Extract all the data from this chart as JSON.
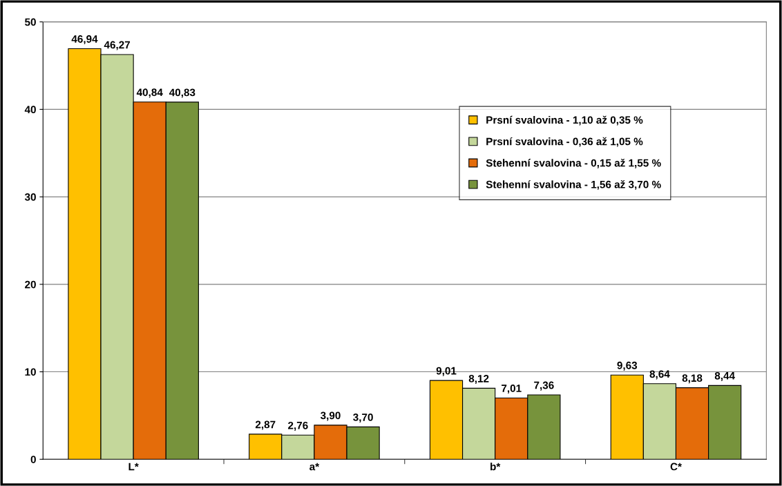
{
  "chart_data": {
    "type": "bar",
    "categories": [
      "L*",
      "a*",
      "b*",
      "C*"
    ],
    "series": [
      {
        "name": "Prsní svalovina - 1,10 až 0,35 %",
        "color": "#ffc000",
        "values": [
          46.94,
          2.87,
          9.01,
          9.63
        ],
        "value_labels": [
          "46,94",
          "2,87",
          "9,01",
          "9,63"
        ]
      },
      {
        "name": "Prsní svalovina - 0,36 až 1,05 %",
        "color": "#c4d79b",
        "values": [
          46.27,
          2.76,
          8.12,
          8.64
        ],
        "value_labels": [
          "46,27",
          "2,76",
          "8,12",
          "8,64"
        ]
      },
      {
        "name": "Stehenní svalovina - 0,15 až 1,55 %",
        "color": "#e46c0a",
        "values": [
          40.84,
          3.9,
          7.01,
          8.18
        ],
        "value_labels": [
          "40,84",
          "3,90",
          "7,01",
          "8,18"
        ]
      },
      {
        "name": "Stehenní svalovina - 1,56 až 3,70 %",
        "color": "#77933c",
        "values": [
          40.83,
          3.7,
          7.36,
          8.44
        ],
        "value_labels": [
          "40,83",
          "3,70",
          "7,36",
          "8,44"
        ]
      }
    ],
    "ylim": [
      0,
      50
    ],
    "yticks": [
      0,
      10,
      20,
      30,
      40,
      50
    ],
    "grid": "y",
    "legend": "right"
  }
}
